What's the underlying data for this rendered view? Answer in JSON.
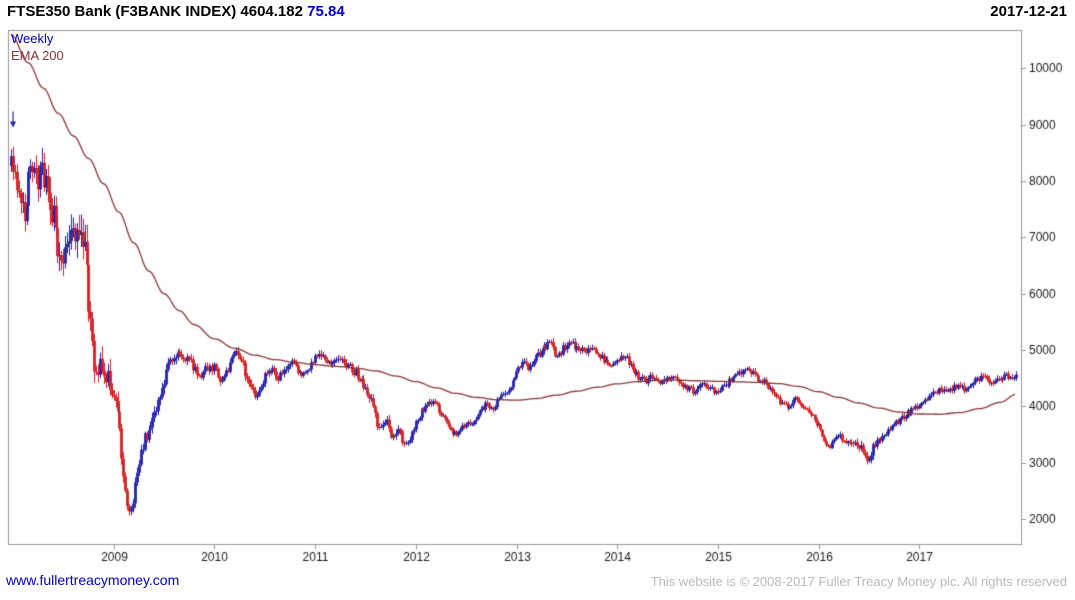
{
  "header": {
    "title": "FTSE350 Bank (F3BANK INDEX)",
    "last_value": "4604.182",
    "change": "75.84",
    "date": "2017-12-21"
  },
  "legend": {
    "weekly": "Weekly",
    "ema": "EMA 200"
  },
  "footer": {
    "site_link": "www.fullertreacymoney.com",
    "copyright": "This website is © 2008-2017 Fuller Treacy Money plc. All rights reserved"
  },
  "colors": {
    "up_candle": "#2222aa",
    "down_candle": "#d41f1f",
    "ema_line": "#8b3535",
    "axis_border": "#999999",
    "tick_label": "#1a1a1a",
    "change_blue": "#0000cc",
    "link_blue": "#0000cc",
    "copyright_gray": "#b9b9b9"
  },
  "chart_data": {
    "type": "candlestick",
    "title": "FTSE350 Bank (F3BANK INDEX)",
    "interval": "Weekly",
    "grid": false,
    "legend_position": "top-left",
    "x_range": [
      2007.95,
      2018.02
    ],
    "y_range": [
      1540,
      10680
    ],
    "x_ticks": [
      2009,
      2010,
      2011,
      2012,
      2013,
      2014,
      2015,
      2016,
      2017
    ],
    "y_ticks": [
      2000,
      3000,
      4000,
      5000,
      6000,
      7000,
      8000,
      9000,
      10000
    ],
    "annotation": {
      "type": "down-arrow",
      "x": 2008.0,
      "y": 8950
    },
    "series": [
      {
        "name": "Weekly",
        "type": "candlestick",
        "anchors": [
          [
            2007.98,
            8350
          ],
          [
            2008.03,
            8100
          ],
          [
            2008.08,
            7600
          ],
          [
            2008.12,
            7450
          ],
          [
            2008.17,
            8250
          ],
          [
            2008.22,
            7950
          ],
          [
            2008.27,
            8150
          ],
          [
            2008.32,
            7900
          ],
          [
            2008.38,
            7500
          ],
          [
            2008.44,
            6950
          ],
          [
            2008.5,
            6600
          ],
          [
            2008.56,
            7100
          ],
          [
            2008.62,
            6850
          ],
          [
            2008.67,
            7000
          ],
          [
            2008.72,
            6550
          ],
          [
            2008.77,
            5400
          ],
          [
            2008.82,
            4600
          ],
          [
            2008.87,
            4950
          ],
          [
            2008.92,
            4500
          ],
          [
            2008.97,
            4400
          ],
          [
            2009.03,
            3900
          ],
          [
            2009.08,
            3100
          ],
          [
            2009.13,
            2300
          ],
          [
            2009.16,
            2050
          ],
          [
            2009.2,
            2450
          ],
          [
            2009.25,
            3000
          ],
          [
            2009.31,
            3450
          ],
          [
            2009.38,
            3700
          ],
          [
            2009.44,
            4050
          ],
          [
            2009.5,
            4450
          ],
          [
            2009.56,
            4800
          ],
          [
            2009.62,
            5000
          ],
          [
            2009.68,
            4800
          ],
          [
            2009.74,
            4950
          ],
          [
            2009.8,
            4650
          ],
          [
            2009.86,
            4500
          ],
          [
            2009.92,
            4700
          ],
          [
            2010.0,
            4680
          ],
          [
            2010.07,
            4400
          ],
          [
            2010.14,
            4700
          ],
          [
            2010.21,
            4950
          ],
          [
            2010.28,
            4800
          ],
          [
            2010.35,
            4300
          ],
          [
            2010.42,
            4200
          ],
          [
            2010.49,
            4500
          ],
          [
            2010.56,
            4650
          ],
          [
            2010.63,
            4500
          ],
          [
            2010.7,
            4650
          ],
          [
            2010.77,
            4800
          ],
          [
            2010.84,
            4550
          ],
          [
            2010.92,
            4650
          ],
          [
            2011.0,
            4850
          ],
          [
            2011.07,
            4980
          ],
          [
            2011.13,
            4750
          ],
          [
            2011.2,
            4880
          ],
          [
            2011.27,
            4800
          ],
          [
            2011.34,
            4700
          ],
          [
            2011.42,
            4550
          ],
          [
            2011.49,
            4350
          ],
          [
            2011.55,
            4150
          ],
          [
            2011.6,
            3800
          ],
          [
            2011.64,
            3550
          ],
          [
            2011.7,
            3750
          ],
          [
            2011.76,
            3450
          ],
          [
            2011.82,
            3600
          ],
          [
            2011.88,
            3350
          ],
          [
            2011.94,
            3450
          ],
          [
            2012.0,
            3750
          ],
          [
            2012.07,
            3950
          ],
          [
            2012.14,
            4120
          ],
          [
            2012.21,
            4000
          ],
          [
            2012.28,
            3750
          ],
          [
            2012.35,
            3550
          ],
          [
            2012.42,
            3500
          ],
          [
            2012.49,
            3700
          ],
          [
            2012.56,
            3650
          ],
          [
            2012.63,
            3900
          ],
          [
            2012.7,
            4050
          ],
          [
            2012.77,
            3980
          ],
          [
            2012.84,
            4150
          ],
          [
            2012.92,
            4300
          ],
          [
            2013.0,
            4650
          ],
          [
            2013.06,
            4820
          ],
          [
            2013.12,
            4700
          ],
          [
            2013.19,
            4880
          ],
          [
            2013.26,
            5000
          ],
          [
            2013.33,
            5150
          ],
          [
            2013.4,
            4850
          ],
          [
            2013.46,
            5020
          ],
          [
            2013.53,
            5120
          ],
          [
            2013.6,
            5050
          ],
          [
            2013.67,
            4950
          ],
          [
            2013.74,
            5080
          ],
          [
            2013.81,
            4900
          ],
          [
            2013.88,
            4800
          ],
          [
            2013.94,
            4720
          ],
          [
            2014.0,
            4830
          ],
          [
            2014.07,
            4930
          ],
          [
            2014.14,
            4700
          ],
          [
            2014.21,
            4520
          ],
          [
            2014.28,
            4440
          ],
          [
            2014.35,
            4560
          ],
          [
            2014.42,
            4420
          ],
          [
            2014.49,
            4520
          ],
          [
            2014.56,
            4560
          ],
          [
            2014.63,
            4420
          ],
          [
            2014.7,
            4300
          ],
          [
            2014.77,
            4260
          ],
          [
            2014.84,
            4450
          ],
          [
            2014.92,
            4330
          ],
          [
            2015.0,
            4250
          ],
          [
            2015.07,
            4370
          ],
          [
            2015.14,
            4480
          ],
          [
            2015.21,
            4580
          ],
          [
            2015.28,
            4650
          ],
          [
            2015.35,
            4560
          ],
          [
            2015.42,
            4480
          ],
          [
            2015.49,
            4380
          ],
          [
            2015.56,
            4220
          ],
          [
            2015.63,
            4050
          ],
          [
            2015.7,
            3980
          ],
          [
            2015.77,
            4120
          ],
          [
            2015.84,
            3980
          ],
          [
            2015.92,
            3880
          ],
          [
            2016.0,
            3640
          ],
          [
            2016.06,
            3380
          ],
          [
            2016.12,
            3280
          ],
          [
            2016.18,
            3480
          ],
          [
            2016.25,
            3400
          ],
          [
            2016.32,
            3320
          ],
          [
            2016.38,
            3380
          ],
          [
            2016.44,
            3200
          ],
          [
            2016.49,
            2950
          ],
          [
            2016.53,
            3250
          ],
          [
            2016.6,
            3380
          ],
          [
            2016.67,
            3520
          ],
          [
            2016.74,
            3650
          ],
          [
            2016.81,
            3780
          ],
          [
            2016.88,
            3880
          ],
          [
            2016.95,
            3960
          ],
          [
            2017.02,
            4050
          ],
          [
            2017.09,
            4160
          ],
          [
            2017.16,
            4240
          ],
          [
            2017.23,
            4310
          ],
          [
            2017.3,
            4260
          ],
          [
            2017.37,
            4360
          ],
          [
            2017.44,
            4300
          ],
          [
            2017.51,
            4400
          ],
          [
            2017.58,
            4460
          ],
          [
            2017.65,
            4520
          ],
          [
            2017.72,
            4420
          ],
          [
            2017.79,
            4480
          ],
          [
            2017.86,
            4540
          ],
          [
            2017.92,
            4470
          ],
          [
            2017.97,
            4604
          ]
        ]
      },
      {
        "name": "EMA 200",
        "type": "line",
        "anchors": [
          [
            2007.98,
            10600
          ],
          [
            2008.15,
            10100
          ],
          [
            2008.3,
            9650
          ],
          [
            2008.45,
            9200
          ],
          [
            2008.6,
            8800
          ],
          [
            2008.75,
            8400
          ],
          [
            2008.9,
            7950
          ],
          [
            2009.05,
            7450
          ],
          [
            2009.2,
            6900
          ],
          [
            2009.35,
            6400
          ],
          [
            2009.5,
            6000
          ],
          [
            2009.65,
            5700
          ],
          [
            2009.8,
            5450
          ],
          [
            2010.0,
            5200
          ],
          [
            2010.2,
            5030
          ],
          [
            2010.4,
            4910
          ],
          [
            2010.6,
            4830
          ],
          [
            2010.8,
            4780
          ],
          [
            2011.0,
            4740
          ],
          [
            2011.2,
            4710
          ],
          [
            2011.4,
            4680
          ],
          [
            2011.6,
            4630
          ],
          [
            2011.8,
            4540
          ],
          [
            2012.0,
            4440
          ],
          [
            2012.2,
            4330
          ],
          [
            2012.4,
            4230
          ],
          [
            2012.6,
            4160
          ],
          [
            2012.8,
            4120
          ],
          [
            2013.0,
            4110
          ],
          [
            2013.2,
            4140
          ],
          [
            2013.4,
            4200
          ],
          [
            2013.6,
            4270
          ],
          [
            2013.8,
            4340
          ],
          [
            2014.0,
            4400
          ],
          [
            2014.2,
            4440
          ],
          [
            2014.4,
            4460
          ],
          [
            2014.6,
            4465
          ],
          [
            2014.8,
            4455
          ],
          [
            2015.0,
            4445
          ],
          [
            2015.2,
            4435
          ],
          [
            2015.4,
            4425
          ],
          [
            2015.6,
            4405
          ],
          [
            2015.8,
            4355
          ],
          [
            2016.0,
            4260
          ],
          [
            2016.2,
            4160
          ],
          [
            2016.4,
            4060
          ],
          [
            2016.6,
            3970
          ],
          [
            2016.8,
            3900
          ],
          [
            2017.0,
            3865
          ],
          [
            2017.2,
            3860
          ],
          [
            2017.4,
            3890
          ],
          [
            2017.6,
            3960
          ],
          [
            2017.8,
            4070
          ],
          [
            2017.97,
            4220
          ]
        ]
      }
    ]
  }
}
